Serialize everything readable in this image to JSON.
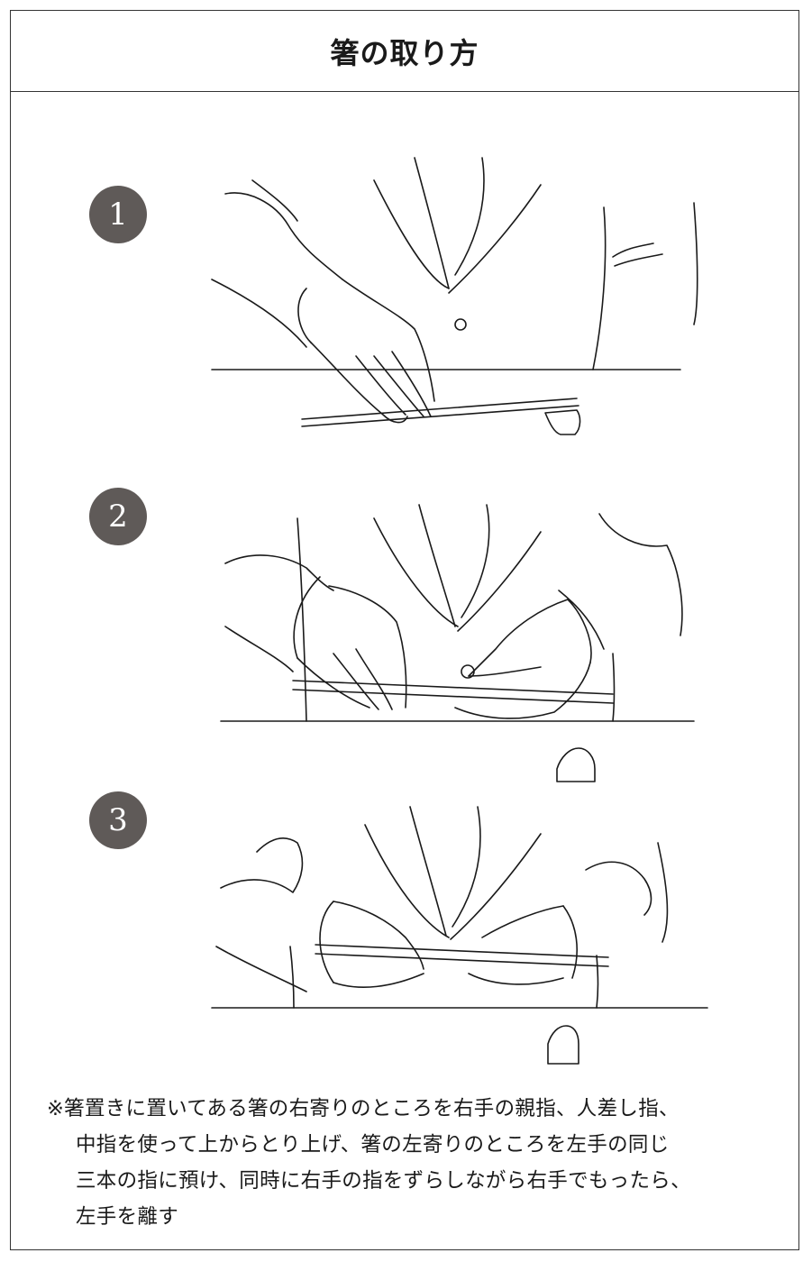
{
  "title": "箸の取り方",
  "steps": [
    {
      "number": "1"
    },
    {
      "number": "2"
    },
    {
      "number": "3"
    }
  ],
  "note": {
    "lines": [
      "※箸置きに置いてある箸の右寄りのところを右手の親指、人差し指、",
      "中指を使って上からとり上げ、箸の左寄りのところを左手の同じ",
      "三本の指に預け、同時に右手の指をずらしながら右手でもったら、",
      "左手を離す"
    ]
  },
  "colors": {
    "badge": "#5f5a58",
    "border": "#333333",
    "ink": "#1a1a1a"
  }
}
